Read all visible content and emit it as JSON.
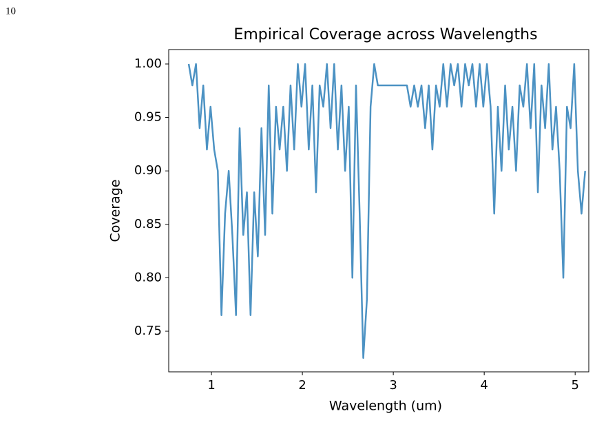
{
  "page_number": "10",
  "chart_data": {
    "type": "line",
    "title": "Empirical Coverage across Wavelengths",
    "xlabel": "Wavelength (um)",
    "ylabel": "Coverage",
    "xlim": [
      0.53,
      5.15
    ],
    "ylim": [
      0.712,
      1.0135
    ],
    "xticks": [
      1,
      2,
      3,
      4,
      5
    ],
    "yticks": [
      {
        "value": 1,
        "label": "1.00"
      },
      0.95,
      {
        "value": 0.9,
        "label": "0.90"
      },
      0.85,
      {
        "value": 0.8,
        "label": "0.80"
      },
      0.75
    ],
    "grid": false,
    "series": [
      {
        "name": "Coverage",
        "color": "#4c92c3",
        "x": [
          0.75,
          0.79,
          0.83,
          0.87,
          0.91,
          0.95,
          0.99,
          1.03,
          1.07,
          1.11,
          1.15,
          1.19,
          1.23,
          1.27,
          1.31,
          1.35,
          1.39,
          1.43,
          1.47,
          1.51,
          1.55,
          1.59,
          1.63,
          1.67,
          1.71,
          1.75,
          1.79,
          1.83,
          1.87,
          1.91,
          1.95,
          1.99,
          2.03,
          2.07,
          2.11,
          2.15,
          2.19,
          2.23,
          2.27,
          2.31,
          2.35,
          2.39,
          2.43,
          2.47,
          2.51,
          2.55,
          2.59,
          2.63,
          2.67,
          2.71,
          2.75,
          2.79,
          2.83,
          2.87,
          2.91,
          2.95,
          2.99,
          3.03,
          3.07,
          3.11,
          3.15,
          3.19,
          3.23,
          3.27,
          3.31,
          3.35,
          3.39,
          3.43,
          3.47,
          3.51,
          3.55,
          3.59,
          3.63,
          3.67,
          3.71,
          3.75,
          3.79,
          3.83,
          3.87,
          3.91,
          3.95,
          3.99,
          4.03,
          4.07,
          4.11,
          4.15,
          4.19,
          4.23,
          4.27,
          4.31,
          4.35,
          4.39,
          4.43,
          4.47,
          4.51,
          4.55,
          4.59,
          4.63,
          4.67,
          4.71,
          4.75,
          4.79,
          4.83,
          4.87,
          4.91,
          4.95,
          4.99,
          5.03,
          5.07,
          5.11
        ],
        "values": [
          1.0,
          0.98,
          1.0,
          0.94,
          0.98,
          0.92,
          0.96,
          0.92,
          0.9,
          0.765,
          0.86,
          0.9,
          0.84,
          0.765,
          0.94,
          0.84,
          0.88,
          0.765,
          0.88,
          0.82,
          0.94,
          0.84,
          0.98,
          0.86,
          0.96,
          0.92,
          0.96,
          0.9,
          0.98,
          0.92,
          1.0,
          0.96,
          1.0,
          0.92,
          0.98,
          0.88,
          0.98,
          0.96,
          1.0,
          0.94,
          1.0,
          0.92,
          0.98,
          0.9,
          0.96,
          0.8,
          0.98,
          0.86,
          0.725,
          0.78,
          0.96,
          1.0,
          0.98,
          0.98,
          0.98,
          0.98,
          0.98,
          0.98,
          0.98,
          0.98,
          0.98,
          0.96,
          0.98,
          0.96,
          0.98,
          0.94,
          0.98,
          0.92,
          0.98,
          0.96,
          1.0,
          0.96,
          1.0,
          0.98,
          1.0,
          0.96,
          1.0,
          0.98,
          1.0,
          0.96,
          1.0,
          0.96,
          1.0,
          0.96,
          0.86,
          0.96,
          0.9,
          0.98,
          0.92,
          0.96,
          0.9,
          0.98,
          0.96,
          1.0,
          0.94,
          1.0,
          0.88,
          0.98,
          0.94,
          1.0,
          0.92,
          0.96,
          0.9,
          0.8,
          0.96,
          0.94,
          1.0,
          0.9,
          0.86,
          0.9
        ]
      }
    ]
  }
}
